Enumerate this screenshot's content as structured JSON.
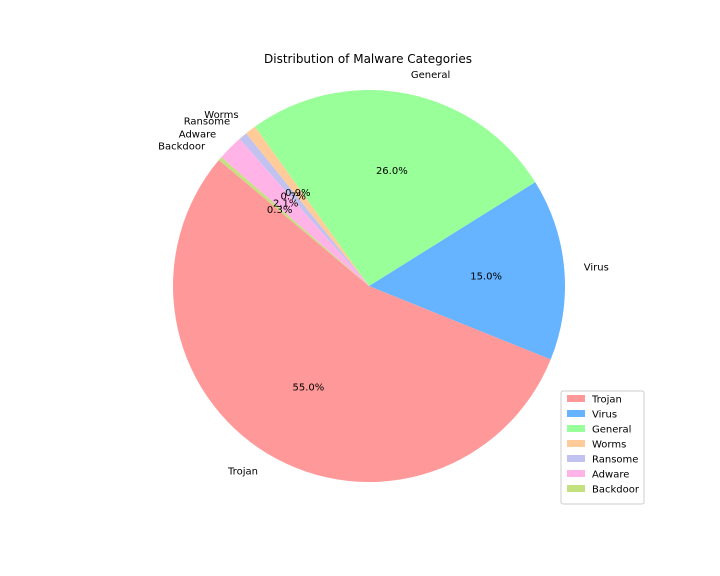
{
  "chart_data": {
    "type": "pie",
    "title": "Distribution of Malware Categories",
    "categories": [
      "Trojan",
      "Virus",
      "General",
      "Worms",
      "Ransome",
      "Adware",
      "Backdoor"
    ],
    "values": [
      55.0,
      15.0,
      26.0,
      0.9,
      0.7,
      2.1,
      0.3
    ],
    "percent_labels": [
      "55.0%",
      "15.0%",
      "26.0%",
      "0.9%",
      "0.7%",
      "2.1%",
      "0.3%"
    ],
    "colors": [
      "#ff9999",
      "#66b3ff",
      "#99ff99",
      "#ffcc99",
      "#c2c2f0",
      "#ffb3e6",
      "#c4e17f"
    ],
    "start_angle_deg": 140,
    "direction": "counterclockwise",
    "legend": {
      "placement": "lower-right",
      "entries": [
        "Trojan",
        "Virus",
        "General",
        "Worms",
        "Ransome",
        "Adware",
        "Backdoor"
      ]
    }
  }
}
